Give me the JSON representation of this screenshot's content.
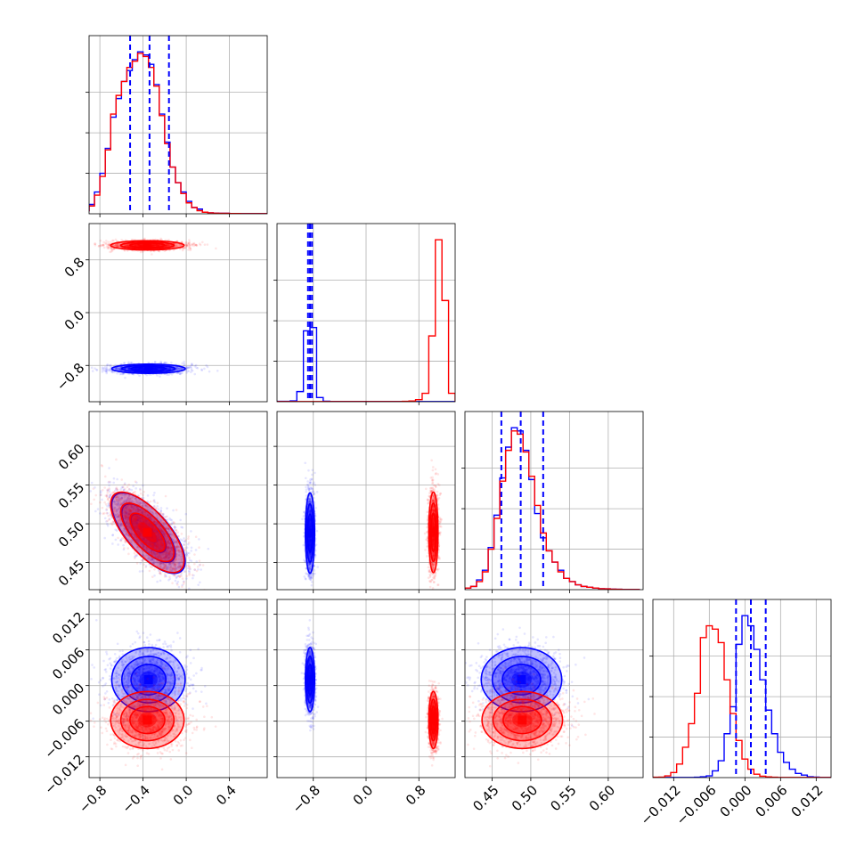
{
  "chart_data": {
    "type": "corner",
    "title": "",
    "grid": true,
    "colors": {
      "blue": "#0000ff",
      "red": "#ff0000"
    },
    "parameters": [
      {
        "index": 0,
        "range": [
          -0.9,
          0.75
        ],
        "ticks": [
          -0.8,
          -0.4,
          0.0,
          0.4
        ],
        "tick_labels": [
          "−0.8",
          "−0.4",
          "0.0",
          "0.4"
        ]
      },
      {
        "index": 1,
        "range": [
          -1.35,
          1.35
        ],
        "ticks": [
          -0.8,
          0.0,
          0.8
        ],
        "tick_labels": [
          "−0.8",
          "0.0",
          "0.8"
        ]
      },
      {
        "index": 2,
        "range": [
          0.415,
          0.645
        ],
        "ticks": [
          0.45,
          0.5,
          0.55,
          0.6
        ],
        "tick_labels": [
          "0.45",
          "0.50",
          "0.55",
          "0.60"
        ]
      },
      {
        "index": 3,
        "range": [
          -0.0155,
          0.0145
        ],
        "ticks": [
          -0.012,
          -0.006,
          0.0,
          0.006,
          0.012
        ],
        "tick_labels": [
          "−0.012",
          "−0.006",
          "0.000",
          "0.006",
          "0.012"
        ]
      }
    ],
    "series": [
      {
        "color": "blue",
        "mean": [
          -0.35,
          -0.85,
          0.488,
          0.001
        ],
        "sd": [
          0.17,
          0.035,
          0.026,
          0.0027
        ],
        "quantiles": [
          [
            -0.52,
            -0.34,
            -0.16
          ],
          [
            -0.88,
            -0.85,
            -0.82
          ],
          [
            0.462,
            0.487,
            0.516
          ],
          [
            -0.0015,
            0.001,
            0.0035
          ]
        ]
      },
      {
        "color": "red",
        "mean": [
          -0.36,
          1.02,
          0.489,
          -0.0058
        ],
        "sd": [
          0.17,
          0.035,
          0.026,
          0.0024
        ],
        "quantiles": null
      }
    ],
    "correlations": [
      {
        "pair": [
          1,
          0
        ],
        "blue": 0.0,
        "red": 0.0
      },
      {
        "pair": [
          2,
          0
        ],
        "blue": -0.7,
        "red": -0.7
      },
      {
        "pair": [
          2,
          1
        ],
        "blue": 0.0,
        "red": 0.0
      },
      {
        "pair": [
          3,
          0
        ],
        "blue": 0.0,
        "red": 0.0
      },
      {
        "pair": [
          3,
          1
        ],
        "blue": 0.0,
        "red": 0.0
      },
      {
        "pair": [
          3,
          2
        ],
        "blue": 0.0,
        "red": 0.0
      }
    ],
    "histograms": [
      {
        "param": 0,
        "edges": [
          -0.95,
          -0.9,
          -0.85,
          -0.8,
          -0.75,
          -0.7,
          -0.65,
          -0.6,
          -0.55,
          -0.5,
          -0.45,
          -0.4,
          -0.35,
          -0.3,
          -0.25,
          -0.2,
          -0.15,
          -0.1,
          -0.05,
          0.0,
          0.05,
          0.1,
          0.15,
          0.2,
          0.25,
          0.3,
          0.35,
          0.4,
          0.45,
          0.5,
          0.55,
          0.6,
          0.65,
          0.7,
          0.75
        ],
        "blue": [
          2,
          6,
          14,
          26,
          42,
          62,
          74,
          85,
          92,
          99,
          104,
          102,
          96,
          83,
          64,
          46,
          30,
          20,
          14,
          8,
          4,
          3,
          1,
          0.6,
          0.4,
          0.3,
          0.3,
          0.2,
          0.2,
          0.1,
          0.1,
          0.1,
          0.1,
          0.1
        ],
        "red": [
          2,
          5,
          12,
          24,
          41,
          64,
          76,
          85,
          94,
          98,
          103,
          101,
          94,
          82,
          63,
          45,
          30,
          20,
          13,
          7,
          4,
          2,
          1,
          0.6,
          0.4,
          0.3,
          0.3,
          0.2,
          0.2,
          0.1,
          0.1,
          0.1,
          0.1,
          0.1
        ]
      },
      {
        "param": 1,
        "edges": [
          -1.35,
          -1.25,
          -1.15,
          -1.05,
          -0.95,
          -0.85,
          -0.75,
          -0.65,
          -0.55,
          -0.45,
          -0.35,
          -0.25,
          -0.15,
          -0.05,
          0.05,
          0.15,
          0.25,
          0.35,
          0.45,
          0.55,
          0.65,
          0.75,
          0.85,
          0.95,
          1.05,
          1.15,
          1.25,
          1.35
        ],
        "blue": [
          0.2,
          0.2,
          0.5,
          6,
          42,
          44,
          2.5,
          0.3,
          0.1,
          0.1,
          0.1,
          0.1,
          0.1,
          0.1,
          0.1,
          0.1,
          0.1,
          0.1,
          0.1,
          0.1,
          0.1,
          0.1,
          0.1,
          0.1,
          0.1,
          0.1,
          0.1
        ],
        "red": [
          0.1,
          0.1,
          0.1,
          0.1,
          0.1,
          0.1,
          0.1,
          0.1,
          0.1,
          0.1,
          0.1,
          0.1,
          0.1,
          0.1,
          0.1,
          0.1,
          0.1,
          0.1,
          0.1,
          0.2,
          0.4,
          1.2,
          5,
          39,
          96,
          60,
          5
        ]
      },
      {
        "param": 2,
        "edges": [
          0.415,
          0.4225,
          0.43,
          0.4375,
          0.445,
          0.4525,
          0.46,
          0.4675,
          0.475,
          0.4825,
          0.49,
          0.4975,
          0.505,
          0.5125,
          0.52,
          0.5275,
          0.535,
          0.5425,
          0.55,
          0.5575,
          0.565,
          0.5725,
          0.58,
          0.5875,
          0.595,
          0.6025,
          0.61,
          0.6175,
          0.625,
          0.6325,
          0.64
        ],
        "blue": [
          1,
          2,
          6,
          12,
          26,
          46,
          69,
          88,
          100,
          98,
          86,
          68,
          47,
          32,
          24,
          17,
          12,
          7,
          5,
          3,
          2,
          1.5,
          1,
          0.6,
          0.5,
          0.3,
          0.2,
          0.1,
          0.1,
          0.1
        ],
        "red": [
          1,
          2,
          5,
          11,
          25,
          44,
          67,
          86,
          98,
          96,
          85,
          70,
          52,
          35,
          24,
          17,
          11,
          7,
          5,
          3,
          2,
          1.5,
          1,
          0.6,
          0.5,
          0.3,
          0.2,
          0.1,
          0.1,
          0.1
        ]
      },
      {
        "param": 3,
        "edges": [
          -0.0155,
          -0.0145,
          -0.0135,
          -0.0125,
          -0.0115,
          -0.0105,
          -0.0095,
          -0.0085,
          -0.0075,
          -0.0065,
          -0.0055,
          -0.0045,
          -0.0035,
          -0.0025,
          -0.0015,
          -0.0005,
          0.0005,
          0.0015,
          0.0025,
          0.0035,
          0.0045,
          0.0055,
          0.0065,
          0.0075,
          0.0085,
          0.0095,
          0.0105,
          0.0115,
          0.0125,
          0.0135,
          0.0145
        ],
        "blue": [
          0.1,
          0.1,
          0.1,
          0.1,
          0.1,
          0.1,
          0.1,
          0.2,
          0.5,
          1,
          4,
          10,
          26,
          42,
          79,
          96,
          90,
          76,
          58,
          40,
          26,
          15,
          9,
          5,
          2.5,
          1.5,
          0.5,
          0.3,
          0.1,
          0.1
        ],
        "red": [
          0.2,
          0.3,
          1,
          3,
          8,
          18,
          32,
          50,
          83,
          90,
          88,
          80,
          58,
          38,
          22,
          11,
          5,
          2,
          0.8,
          0.4,
          0.2,
          0.1,
          0.1,
          0.1,
          0.1,
          0.1,
          0.1,
          0.1,
          0.1,
          0.1
        ]
      }
    ]
  }
}
